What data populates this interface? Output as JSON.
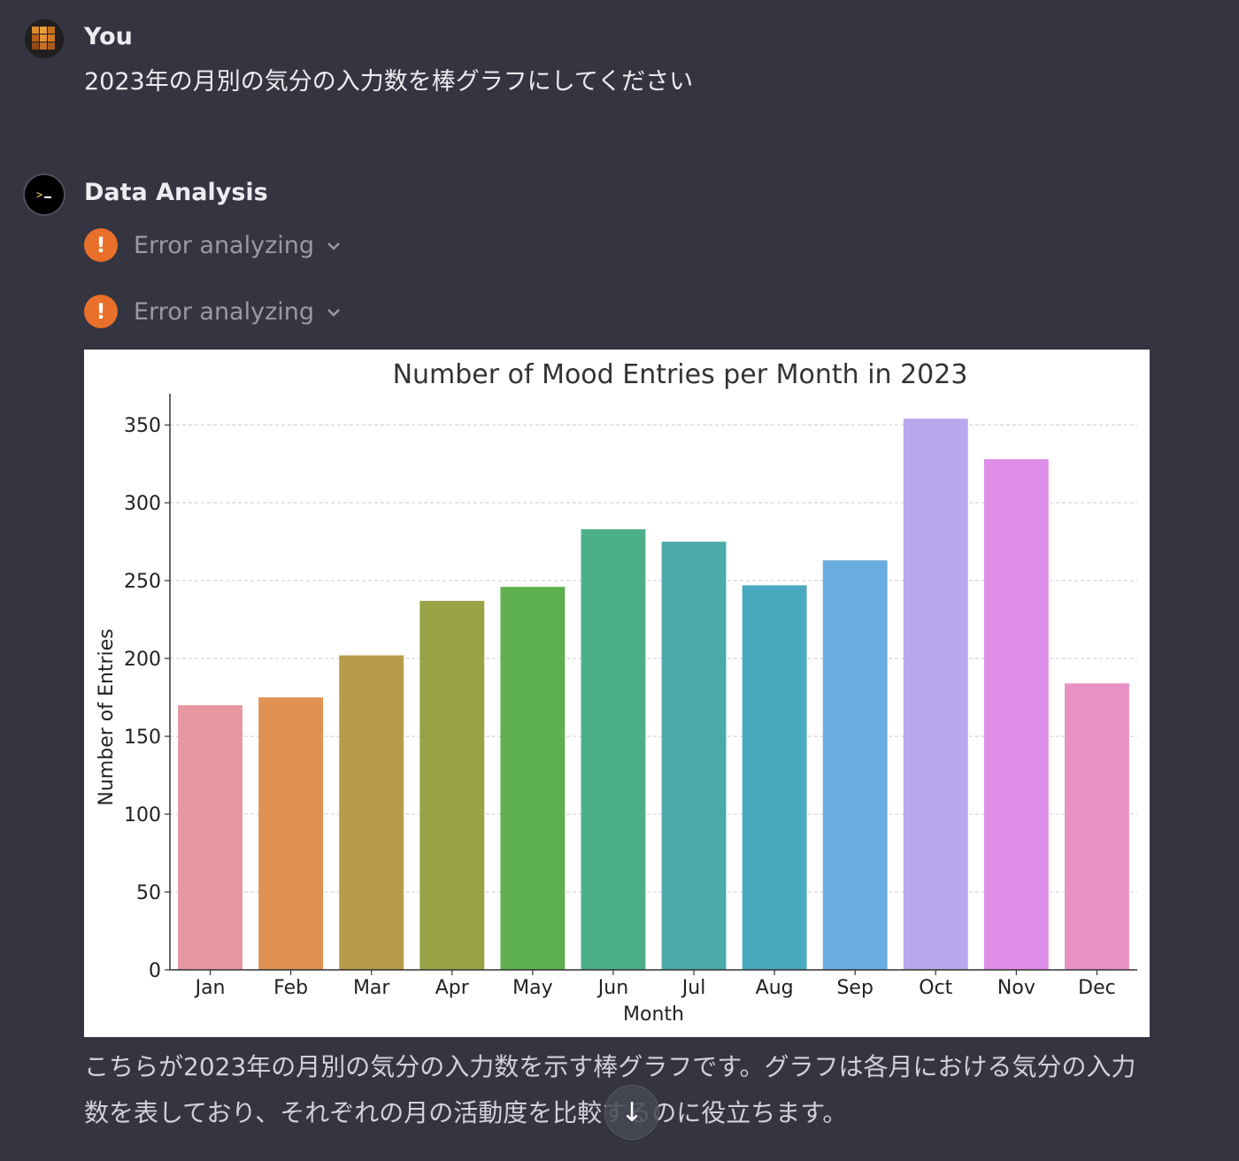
{
  "user": {
    "author": "You",
    "message": "2023年の月別の気分の入力数を棒グラフにしてください"
  },
  "assistant": {
    "author": "Data Analysis",
    "status_items": [
      {
        "label": "Error analyzing",
        "icon": "warning-icon"
      },
      {
        "label": "Error analyzing",
        "icon": "warning-icon"
      }
    ],
    "answer": "こちらが2023年の月別の気分の入力数を示す棒グラフです。グラフは各月における気分の入力数を表しており、それぞれの月の活動度を比較するのに役立ちます。"
  },
  "colors": {
    "background": "#343541",
    "warning": "#e8702a"
  },
  "chart_data": {
    "type": "bar",
    "title": "Number of Mood Entries per Month in 2023",
    "xlabel": "Month",
    "ylabel": "Number of Entries",
    "categories": [
      "Jan",
      "Feb",
      "Mar",
      "Apr",
      "May",
      "Jun",
      "Jul",
      "Aug",
      "Sep",
      "Oct",
      "Nov",
      "Dec"
    ],
    "values": [
      170,
      175,
      202,
      237,
      246,
      283,
      275,
      247,
      263,
      354,
      328,
      184
    ],
    "colors": [
      "#e896a1",
      "#e09154",
      "#b89b4a",
      "#98a346",
      "#5eb14e",
      "#4bb08a",
      "#4aaba9",
      "#4ba9bf",
      "#6aace0",
      "#b7a7ec",
      "#de8de8",
      "#e891c5"
    ],
    "ylim": [
      0,
      370
    ],
    "yticks": [
      0,
      50,
      100,
      150,
      200,
      250,
      300,
      350
    ],
    "grid": true
  },
  "scroll_button": {
    "icon": "arrow-down-icon",
    "glyph": "↓"
  }
}
